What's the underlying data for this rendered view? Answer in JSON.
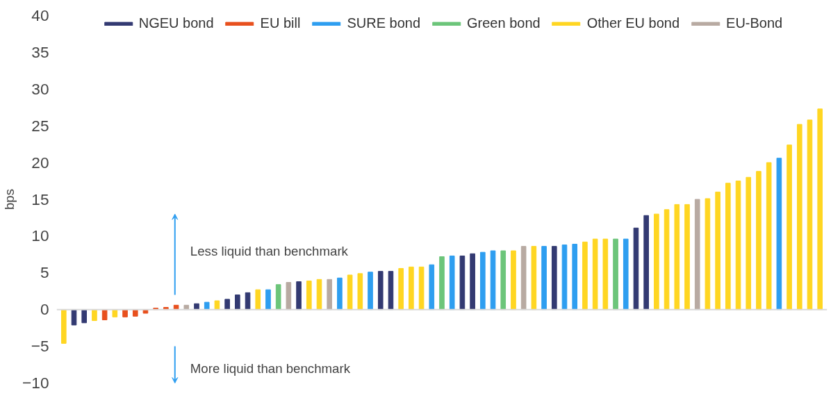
{
  "chart_data": {
    "type": "bar",
    "ylabel": "bps",
    "categories": [
      null,
      null,
      null,
      null,
      null,
      null,
      null,
      null,
      null,
      null,
      null,
      null,
      null,
      null,
      null,
      null,
      null,
      null,
      null,
      null,
      null,
      null,
      null,
      null,
      null,
      null,
      null,
      null,
      null,
      null,
      null,
      null,
      null,
      null,
      null,
      null,
      null,
      null,
      null,
      null,
      null,
      null,
      null,
      null,
      null,
      null,
      null,
      null,
      null,
      null,
      null,
      null,
      null,
      null,
      null,
      null,
      null,
      null,
      null,
      null,
      null,
      null,
      null,
      null,
      null,
      null,
      null,
      null,
      null,
      null,
      null,
      null,
      null,
      null,
      null
    ],
    "series": [
      {
        "name": "NGEU bond",
        "color": "#333a72",
        "values": [
          null,
          -2.1,
          -1.8,
          null,
          null,
          null,
          null,
          null,
          null,
          null,
          null,
          null,
          null,
          0.8,
          null,
          null,
          1.4,
          2.0,
          2.3,
          null,
          null,
          null,
          null,
          3.8,
          null,
          null,
          null,
          null,
          null,
          null,
          null,
          5.2,
          5.2,
          null,
          null,
          null,
          null,
          null,
          null,
          7.3,
          7.6,
          null,
          null,
          null,
          null,
          null,
          null,
          null,
          8.6,
          null,
          null,
          null,
          null,
          null,
          null,
          null,
          11.1,
          12.8,
          null,
          null,
          null,
          null,
          null,
          null,
          null,
          null,
          null,
          null,
          null,
          null,
          null,
          null,
          null,
          null,
          null
        ]
      },
      {
        "name": "EU bill",
        "color": "#e8501e",
        "values": [
          null,
          null,
          null,
          null,
          -1.4,
          null,
          -1.0,
          -0.9,
          -0.5,
          0.2,
          0.3,
          0.6,
          null,
          null,
          null,
          null,
          null,
          null,
          null,
          null,
          null,
          null,
          null,
          null,
          null,
          null,
          null,
          null,
          null,
          null,
          null,
          null,
          null,
          null,
          null,
          null,
          null,
          null,
          null,
          null,
          null,
          null,
          null,
          null,
          null,
          null,
          null,
          null,
          null,
          null,
          null,
          null,
          null,
          null,
          null,
          null,
          null,
          null,
          null,
          null,
          null,
          null,
          null,
          null,
          null,
          null,
          null,
          null,
          null,
          null,
          null,
          null,
          null,
          null,
          null
        ]
      },
      {
        "name": "SURE bond",
        "color": "#2e9ef0",
        "values": [
          null,
          null,
          null,
          null,
          null,
          null,
          null,
          null,
          null,
          null,
          null,
          null,
          null,
          null,
          1.0,
          null,
          null,
          null,
          null,
          null,
          2.7,
          null,
          null,
          null,
          null,
          null,
          null,
          4.3,
          null,
          null,
          5.1,
          null,
          null,
          null,
          null,
          null,
          6.1,
          null,
          7.3,
          null,
          null,
          7.8,
          8.0,
          null,
          null,
          null,
          null,
          8.6,
          null,
          8.8,
          8.9,
          null,
          null,
          null,
          null,
          9.6,
          null,
          null,
          null,
          null,
          null,
          null,
          null,
          null,
          null,
          null,
          null,
          null,
          null,
          null,
          20.6,
          null,
          null,
          null,
          null
        ]
      },
      {
        "name": "Green bond",
        "color": "#6cc57a",
        "values": [
          null,
          null,
          null,
          null,
          null,
          null,
          null,
          null,
          null,
          null,
          null,
          null,
          null,
          null,
          null,
          null,
          null,
          null,
          null,
          null,
          null,
          3.4,
          null,
          null,
          null,
          null,
          null,
          null,
          null,
          null,
          null,
          null,
          null,
          null,
          null,
          null,
          null,
          7.2,
          null,
          null,
          null,
          null,
          null,
          8.0,
          null,
          null,
          null,
          null,
          null,
          null,
          null,
          null,
          null,
          null,
          9.6,
          null,
          null,
          null,
          null,
          null,
          null,
          null,
          null,
          null,
          null,
          null,
          null,
          null,
          null,
          null,
          null,
          null,
          null,
          null,
          null
        ]
      },
      {
        "name": "Other EU bond",
        "color": "#ffd622",
        "values": [
          -4.6,
          null,
          null,
          -1.5,
          null,
          -1.0,
          null,
          null,
          null,
          null,
          null,
          null,
          null,
          null,
          null,
          1.2,
          null,
          null,
          null,
          2.7,
          null,
          null,
          null,
          null,
          3.9,
          4.1,
          null,
          null,
          4.7,
          4.9,
          null,
          null,
          null,
          5.6,
          5.8,
          5.8,
          null,
          null,
          null,
          null,
          null,
          null,
          null,
          null,
          8.0,
          null,
          8.6,
          null,
          null,
          null,
          null,
          9.2,
          9.6,
          9.6,
          null,
          null,
          null,
          null,
          13.0,
          13.6,
          14.3,
          14.3,
          null,
          15.1,
          16.0,
          17.2,
          17.5,
          18.0,
          18.8,
          20.0,
          null,
          22.4,
          25.2,
          25.8,
          27.3
        ]
      },
      {
        "name": "EU-Bond",
        "color": "#b8aaa2",
        "values": [
          null,
          null,
          null,
          null,
          null,
          null,
          null,
          null,
          null,
          null,
          null,
          null,
          0.6,
          null,
          null,
          null,
          null,
          null,
          null,
          null,
          null,
          null,
          3.7,
          null,
          null,
          null,
          4.1,
          null,
          null,
          null,
          null,
          null,
          null,
          null,
          null,
          null,
          null,
          null,
          null,
          null,
          null,
          null,
          null,
          null,
          null,
          8.6,
          null,
          null,
          null,
          null,
          null,
          null,
          null,
          null,
          null,
          null,
          null,
          null,
          null,
          null,
          null,
          null,
          15.0,
          null,
          null,
          null,
          null,
          null,
          null,
          null,
          null,
          null,
          null,
          null,
          null
        ]
      }
    ],
    "ylim": [
      -10,
      40
    ],
    "yticks": [
      -10,
      -5,
      0,
      5,
      10,
      15,
      20,
      25,
      30,
      35,
      40
    ],
    "ref_lines": [
      {
        "axis": "y",
        "value": 0,
        "color": "#d9d9d9"
      }
    ],
    "annotations": [
      "Less liquid than benchmark",
      "More liquid than benchmark"
    ],
    "grid": false,
    "legend": "top"
  }
}
